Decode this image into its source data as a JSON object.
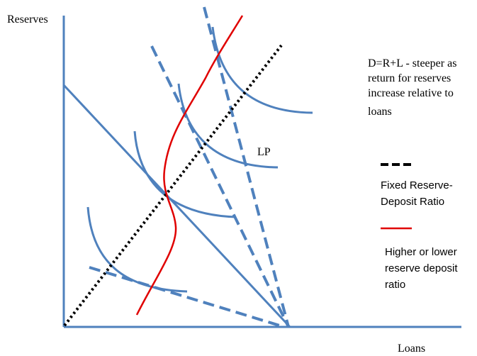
{
  "axes": {
    "y_label": "Reserves",
    "x_label": "Loans"
  },
  "curve_label": "LP",
  "annotation": {
    "lines": [
      "D=R+L - steeper as",
      "return for reserves",
      "increase relative to",
      "loans"
    ]
  },
  "legend": {
    "fixed_ratio": [
      "Fixed Reserve-",
      "Deposit Ratio"
    ],
    "variable_ratio": [
      "Higher or lower",
      "reserve deposit",
      "ratio"
    ]
  },
  "colors": {
    "axis": "#4f81bd",
    "curves": "#4f81bd",
    "fixed_ratio_line": "#000000",
    "variable_ratio_line": "#e00000"
  }
}
